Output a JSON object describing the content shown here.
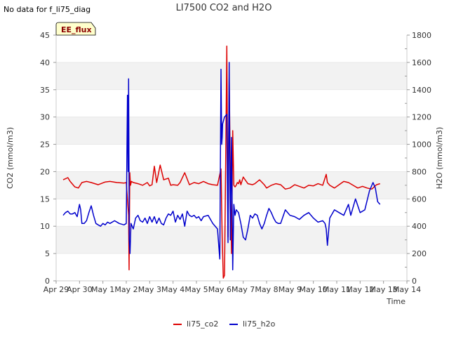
{
  "chart_data": {
    "type": "line",
    "title": "LI7500 CO2 and H2O",
    "no_data_note": "No data for f_li75_diag",
    "badge": "EE_flux",
    "xlabel": "Time",
    "ylabel_left": "CO2 (mmol/m3)",
    "ylabel_right": "H2O (mmol/m3)",
    "x_tick_labels": [
      "Apr 29",
      "Apr 30",
      "May 1",
      "May 2",
      "May 3",
      "May 4",
      "May 5",
      "May 6",
      "May 7",
      "May 8",
      "May 9",
      "May 10",
      "May 11",
      "May 12",
      "May 13",
      "May 14"
    ],
    "x_range_days": [
      0,
      15
    ],
    "ylim_left": [
      0,
      45
    ],
    "ylim_right": [
      0,
      1800
    ],
    "yticks_left": [
      "0",
      "5",
      "10",
      "15",
      "20",
      "25",
      "30",
      "35",
      "40",
      "45"
    ],
    "yticks_right": [
      "0",
      "200",
      "400",
      "600",
      "800",
      "1000",
      "1200",
      "1400",
      "1600",
      "1800"
    ],
    "grid": "horizontal bands",
    "legend_position": "bottom",
    "colors": {
      "co2": "#dd0000",
      "h2o": "#0000cc",
      "band": "#f2f2f2",
      "badge_bg": "#ffffcc"
    },
    "series": [
      {
        "name": "li75_co2",
        "axis": "left",
        "x": [
          0.3,
          0.5,
          0.6,
          0.8,
          0.95,
          1.1,
          1.3,
          1.5,
          1.8,
          2.1,
          2.3,
          2.6,
          2.9,
          3.0,
          3.1,
          3.12,
          3.15,
          3.18,
          3.22,
          3.3,
          3.5,
          3.7,
          3.9,
          4.0,
          4.1,
          4.2,
          4.3,
          4.45,
          4.6,
          4.8,
          4.9,
          5.0,
          5.2,
          5.3,
          5.5,
          5.7,
          5.9,
          6.1,
          6.3,
          6.5,
          6.7,
          6.9,
          7.05,
          7.1,
          7.15,
          7.2,
          7.25,
          7.3,
          7.35,
          7.4,
          7.45,
          7.5,
          7.55,
          7.6,
          7.65,
          7.7,
          7.75,
          7.8,
          7.85,
          7.9,
          8.0,
          8.2,
          8.4,
          8.5,
          8.7,
          8.9,
          9.0,
          9.2,
          9.4,
          9.6,
          9.8,
          10.0,
          10.2,
          10.4,
          10.6,
          10.8,
          11.0,
          11.2,
          11.4,
          11.55,
          11.6,
          11.7,
          11.9,
          12.1,
          12.3,
          12.5,
          12.7,
          12.9,
          13.1,
          13.3,
          13.5,
          13.7,
          13.85
        ],
        "values": [
          18.5,
          18.9,
          18.2,
          17.2,
          17.0,
          18.0,
          18.2,
          18.0,
          17.6,
          18.1,
          18.2,
          18.0,
          17.9,
          18.0,
          12.0,
          2.0,
          19.8,
          17.5,
          18.2,
          18.0,
          17.8,
          17.5,
          18.0,
          17.4,
          17.6,
          21.0,
          18.0,
          21.2,
          18.5,
          18.8,
          17.5,
          17.6,
          17.5,
          18.0,
          19.8,
          17.6,
          18.0,
          17.8,
          18.2,
          17.8,
          17.6,
          17.5,
          20.5,
          8.0,
          0.5,
          1.0,
          22.0,
          43.0,
          8.0,
          37.0,
          20.0,
          5.0,
          27.5,
          17.5,
          17.2,
          17.5,
          18.0,
          17.8,
          18.5,
          17.6,
          19.0,
          17.8,
          17.6,
          17.8,
          18.5,
          17.6,
          17.0,
          17.5,
          17.8,
          17.6,
          16.8,
          17.0,
          17.6,
          17.3,
          17.0,
          17.5,
          17.4,
          17.8,
          17.5,
          19.5,
          18.0,
          17.5,
          17.0,
          17.6,
          18.2,
          18.0,
          17.5,
          17.0,
          17.3,
          17.0,
          16.8,
          17.6,
          17.8
        ]
      },
      {
        "name": "li75_h2o",
        "axis": "right",
        "x": [
          0.3,
          0.4,
          0.5,
          0.6,
          0.7,
          0.8,
          0.9,
          1.0,
          1.05,
          1.1,
          1.2,
          1.3,
          1.4,
          1.5,
          1.6,
          1.7,
          1.8,
          1.9,
          2.0,
          2.1,
          2.2,
          2.3,
          2.5,
          2.7,
          2.9,
          3.0,
          3.05,
          3.08,
          3.1,
          3.13,
          3.16,
          3.2,
          3.25,
          3.3,
          3.4,
          3.5,
          3.6,
          3.7,
          3.8,
          3.9,
          4.0,
          4.1,
          4.2,
          4.3,
          4.4,
          4.5,
          4.6,
          4.7,
          4.8,
          4.9,
          5.0,
          5.1,
          5.2,
          5.3,
          5.4,
          5.5,
          5.6,
          5.7,
          5.8,
          5.9,
          6.0,
          6.1,
          6.2,
          6.3,
          6.5,
          6.7,
          6.9,
          7.0,
          7.05,
          7.08,
          7.1,
          7.12,
          7.2,
          7.3,
          7.35,
          7.4,
          7.45,
          7.5,
          7.55,
          7.6,
          7.65,
          7.7,
          7.8,
          7.9,
          8.0,
          8.1,
          8.2,
          8.3,
          8.4,
          8.5,
          8.6,
          8.7,
          8.8,
          8.9,
          9.0,
          9.1,
          9.2,
          9.3,
          9.4,
          9.5,
          9.6,
          9.8,
          10.0,
          10.2,
          10.4,
          10.6,
          10.8,
          11.0,
          11.2,
          11.4,
          11.5,
          11.55,
          11.6,
          11.7,
          11.9,
          12.1,
          12.3,
          12.5,
          12.6,
          12.8,
          13.0,
          13.2,
          13.4,
          13.55,
          13.65,
          13.75,
          13.85
        ],
        "values": [
          480,
          500,
          510,
          490,
          490,
          500,
          470,
          560,
          520,
          420,
          420,
          440,
          500,
          550,
          480,
          420,
          410,
          400,
          420,
          410,
          430,
          420,
          440,
          420,
          410,
          420,
          1360,
          800,
          1480,
          300,
          200,
          420,
          400,
          380,
          460,
          480,
          440,
          430,
          460,
          420,
          470,
          430,
          470,
          420,
          460,
          420,
          410,
          460,
          490,
          480,
          510,
          430,
          480,
          450,
          490,
          400,
          510,
          480,
          470,
          480,
          460,
          470,
          440,
          470,
          480,
          420,
          380,
          160,
          1550,
          1000,
          1050,
          1150,
          1200,
          1220,
          280,
          1600,
          300,
          1050,
          80,
          560,
          480,
          520,
          500,
          420,
          320,
          300,
          380,
          480,
          460,
          490,
          480,
          420,
          380,
          420,
          480,
          530,
          500,
          460,
          430,
          420,
          420,
          520,
          480,
          470,
          450,
          480,
          500,
          460,
          430,
          440,
          420,
          380,
          260,
          460,
          520,
          500,
          480,
          560,
          480,
          600,
          500,
          520,
          660,
          720,
          680,
          580,
          560
        ]
      }
    ],
    "legend": [
      {
        "name": "li75_co2",
        "color": "#dd0000"
      },
      {
        "name": "li75_h2o",
        "color": "#0000cc"
      }
    ]
  }
}
